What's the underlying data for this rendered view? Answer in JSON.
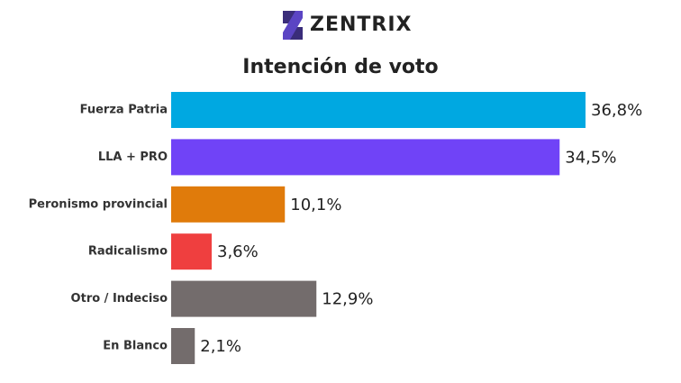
{
  "chart_data": {
    "type": "bar",
    "orientation": "horizontal",
    "brand": "ZENTRIX",
    "title": "Intención de voto",
    "categories": [
      "Fuerza Patria",
      "LLA + PRO",
      "Peronismo provincial",
      "Radicalismo",
      "Otro / Indeciso",
      "En Blanco"
    ],
    "values": [
      36.8,
      34.5,
      10.1,
      3.6,
      12.9,
      2.1
    ],
    "value_labels": [
      "36,8%",
      "34,5%",
      "10,1%",
      "3,6%",
      "12,9%",
      "2,1%"
    ],
    "colors": [
      "#00a8e1",
      "#7043f7",
      "#e07b0b",
      "#ef3f3f",
      "#736c6c",
      "#736c6c"
    ]
  }
}
